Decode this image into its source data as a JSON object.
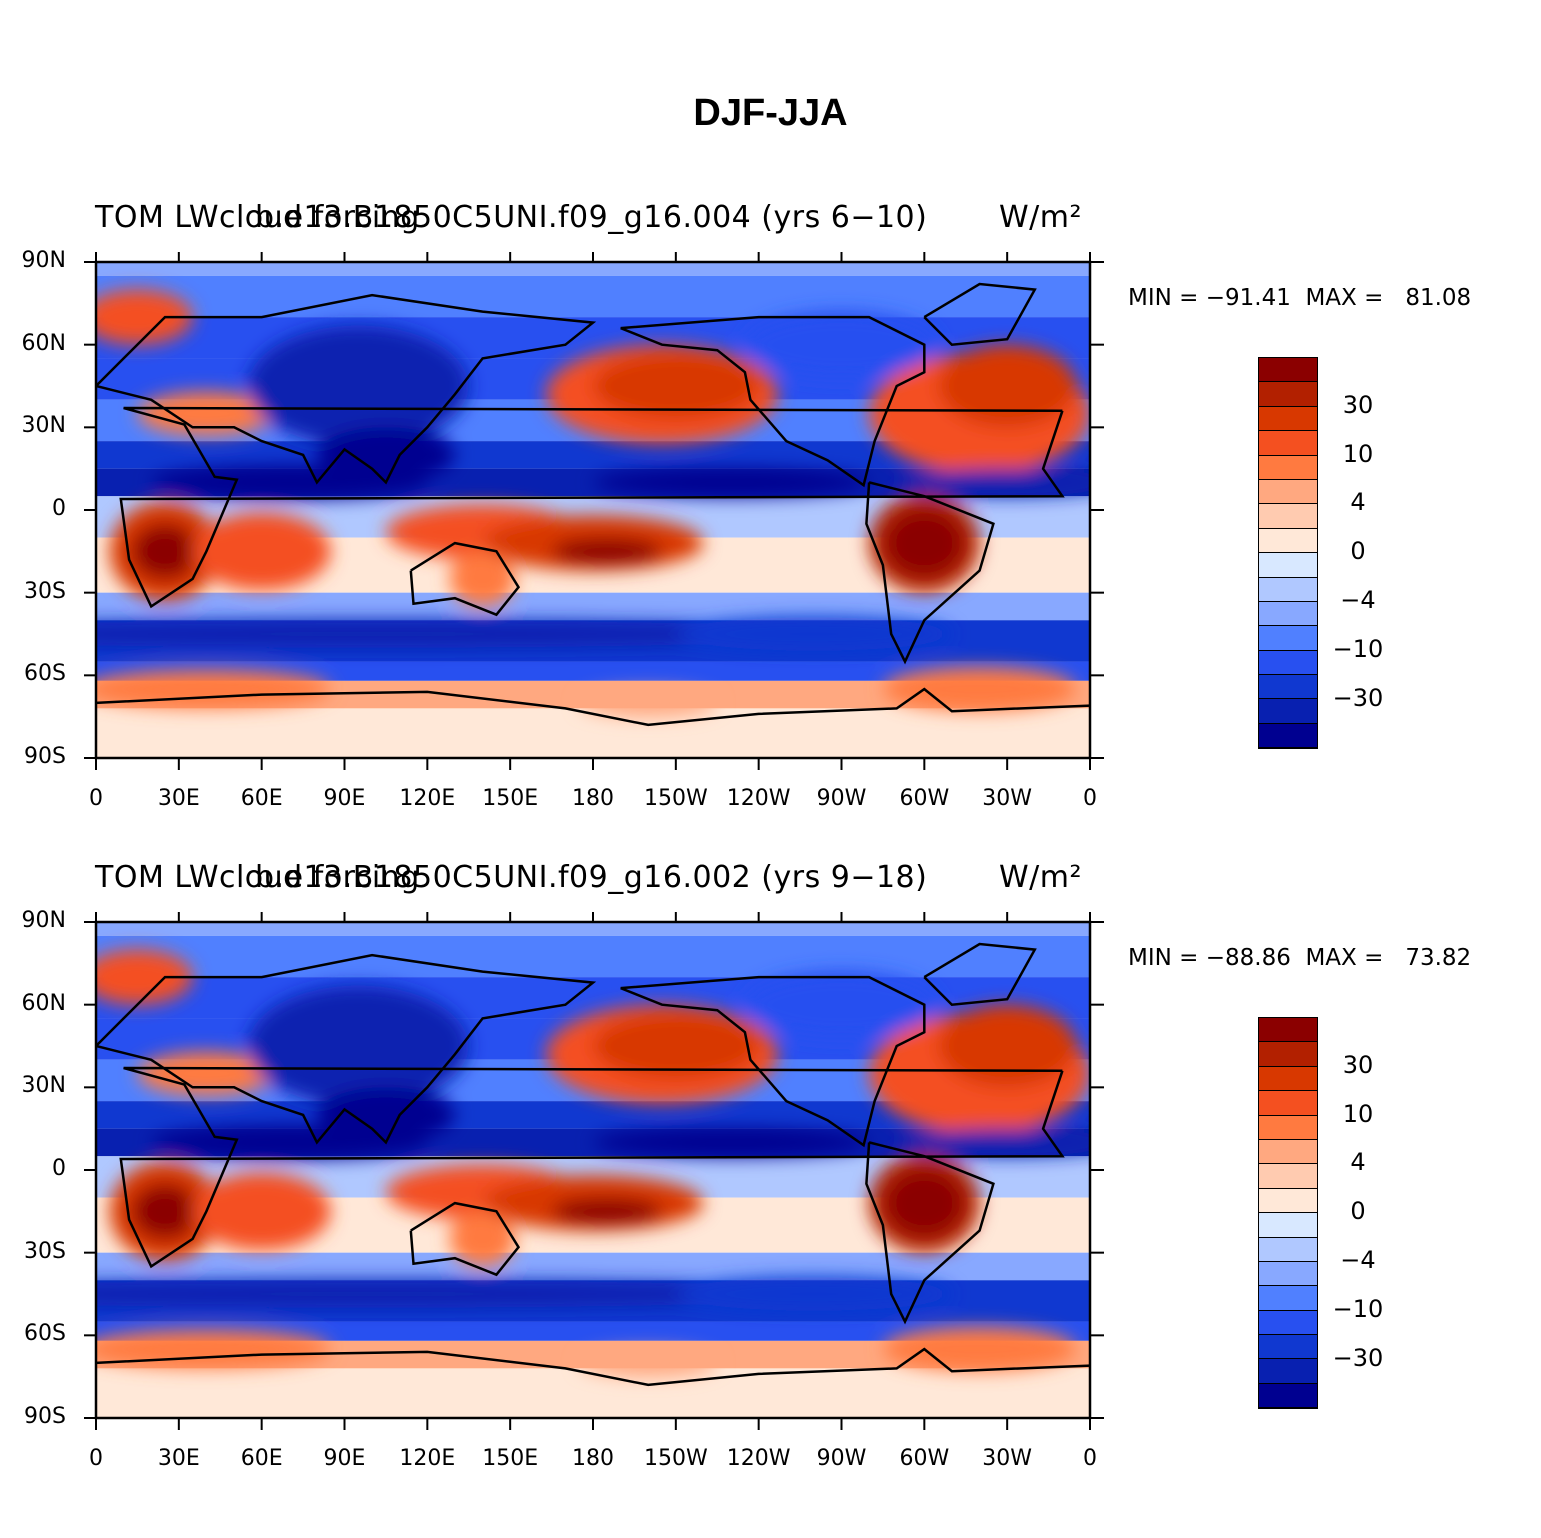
{
  "title": "DJF-JJA",
  "panels": [
    {
      "left_title": "TOM LWcloud forcing",
      "case_label": "b.e13.B1850C5UNI.f09_g16.004 (yrs 6−10)",
      "units": "W/m²",
      "stats_text": "MIN = −91.41  MAX =   81.08",
      "min": -91.41,
      "max": 81.08
    },
    {
      "left_title": "TOM LWcloud forcing",
      "case_label": "b.e13.B1850C5UNI.f09_g16.002 (yrs 9−18)",
      "units": "W/m²",
      "stats_text": "MIN = −88.86  MAX =   73.82",
      "min": -88.86,
      "max": 73.82
    }
  ],
  "lat_ticks": [
    "90N",
    "60N",
    "30N",
    "0",
    "30S",
    "60S",
    "90S"
  ],
  "lon_ticks": [
    "0",
    "30E",
    "60E",
    "90E",
    "120E",
    "150E",
    "180",
    "150W",
    "120W",
    "90W",
    "60W",
    "30W",
    "0"
  ],
  "colorbar": {
    "labels": [
      "30",
      "10",
      "4",
      "0",
      "−4",
      "−10",
      "−30"
    ],
    "colors": [
      "#8b0000",
      "#b22000",
      "#d83800",
      "#f45020",
      "#ff7a40",
      "#ffa880",
      "#ffcbb0",
      "#ffe8d8",
      "#d8e8ff",
      "#b0c8ff",
      "#88a8ff",
      "#5080ff",
      "#2850f0",
      "#1038d0",
      "#0820b0",
      "#000090"
    ]
  }
}
